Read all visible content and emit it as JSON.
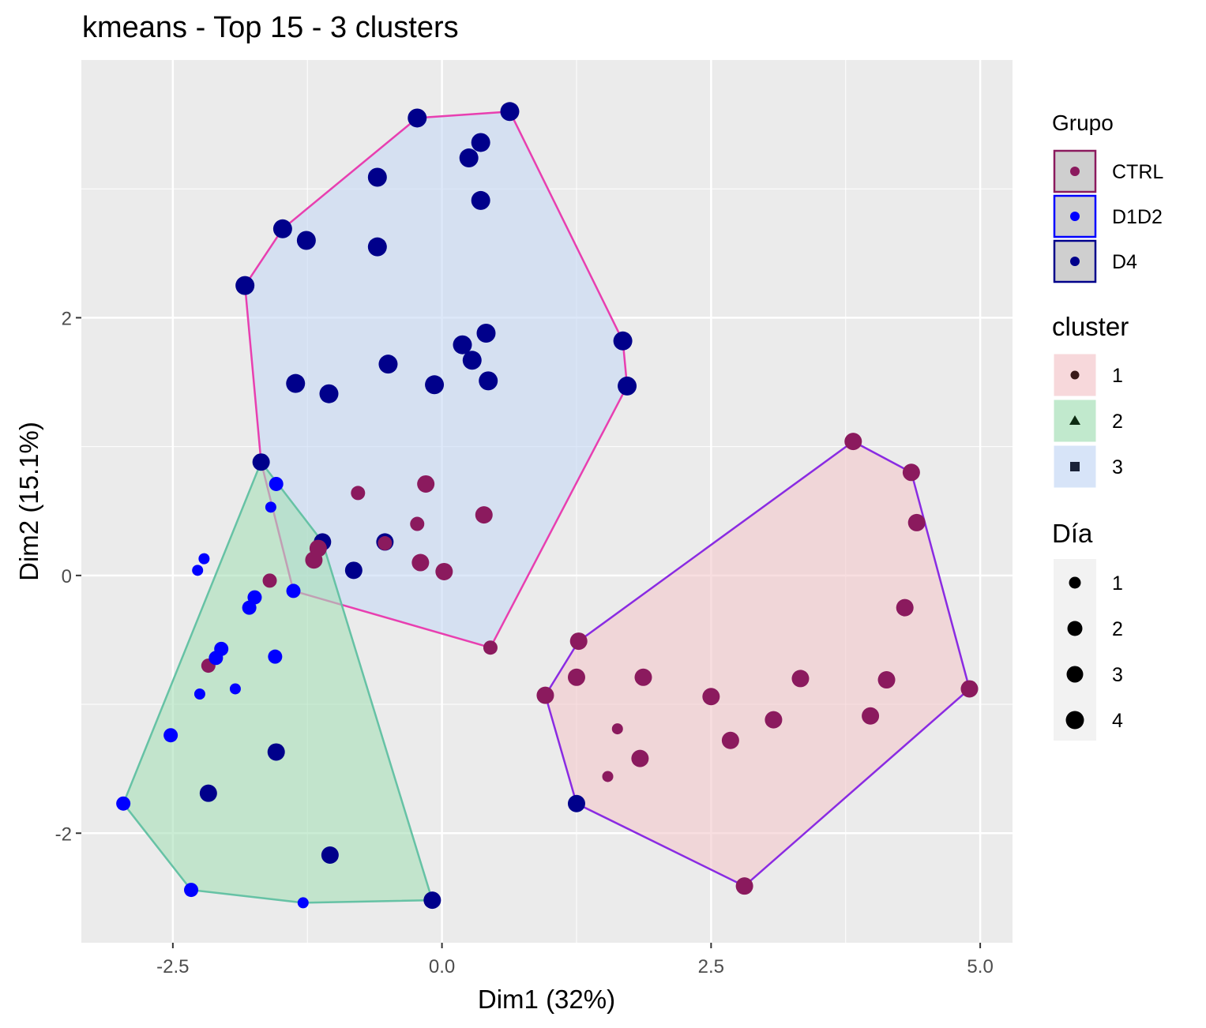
{
  "chart_data": {
    "type": "scatter",
    "title": "kmeans - Top 15 - 3 clusters",
    "xlabel": "Dim1 (32%)",
    "ylabel": "Dim2 (15.1%)",
    "xlim": [
      -3.35,
      5.3
    ],
    "ylim": [
      -2.85,
      4.0
    ],
    "x_ticks": [
      -2.5,
      0.0,
      2.5,
      5.0
    ],
    "x_tick_labels": [
      "-2.5",
      "0.0",
      "2.5",
      "5.0"
    ],
    "y_ticks": [
      -2,
      0,
      2
    ],
    "y_tick_labels": [
      "-2",
      "0",
      "2"
    ],
    "grid": true,
    "legend_position": "right",
    "groups": [
      {
        "name": "CTRL",
        "color": "#8B1A5E"
      },
      {
        "name": "D1D2",
        "color": "#0000FF"
      },
      {
        "name": "D4",
        "color": "#00008B"
      }
    ],
    "clusters": [
      {
        "name": "1",
        "fill": "#F4C8CC",
        "line": "#8A2BE2",
        "symbol": "circle"
      },
      {
        "name": "2",
        "fill": "#A6E0B8",
        "line": "#66C2A5",
        "symbol": "triangle"
      },
      {
        "name": "3",
        "fill": "#C6D8F5",
        "line": "#E83FB0",
        "symbol": "square"
      }
    ],
    "dias": [
      "1",
      "2",
      "3",
      "4"
    ],
    "legend_titles": {
      "grupo": "Grupo",
      "cluster": "cluster",
      "dia": "Día"
    },
    "hulls": [
      {
        "cluster": "3",
        "points": [
          [
            -1.83,
            2.25
          ],
          [
            -1.48,
            2.69
          ],
          [
            -0.23,
            3.55
          ],
          [
            0.63,
            3.6
          ],
          [
            1.68,
            1.82
          ],
          [
            1.72,
            1.47
          ],
          [
            0.45,
            -0.56
          ],
          [
            -1.38,
            -0.12
          ],
          [
            -1.68,
            0.88
          ]
        ]
      },
      {
        "cluster": "2",
        "points": [
          [
            -1.68,
            0.88
          ],
          [
            -1.11,
            0.26
          ],
          [
            -0.09,
            -2.52
          ],
          [
            -1.29,
            -2.54
          ],
          [
            -2.33,
            -2.44
          ],
          [
            -2.96,
            -1.77
          ]
        ]
      },
      {
        "cluster": "1",
        "points": [
          [
            3.82,
            1.04
          ],
          [
            4.36,
            0.8
          ],
          [
            4.9,
            -0.88
          ],
          [
            2.81,
            -2.41
          ],
          [
            1.25,
            -1.77
          ],
          [
            0.96,
            -0.93
          ],
          [
            1.27,
            -0.51
          ]
        ]
      }
    ],
    "points": [
      {
        "x": -0.23,
        "y": 3.55,
        "grupo": "D4",
        "dia": 4
      },
      {
        "x": 0.63,
        "y": 3.6,
        "grupo": "D4",
        "dia": 4
      },
      {
        "x": 0.36,
        "y": 3.36,
        "grupo": "D4",
        "dia": 4
      },
      {
        "x": 0.25,
        "y": 3.24,
        "grupo": "D4",
        "dia": 4
      },
      {
        "x": -0.6,
        "y": 3.09,
        "grupo": "D4",
        "dia": 4
      },
      {
        "x": 0.36,
        "y": 2.91,
        "grupo": "D4",
        "dia": 4
      },
      {
        "x": -1.48,
        "y": 2.69,
        "grupo": "D4",
        "dia": 4
      },
      {
        "x": -1.26,
        "y": 2.6,
        "grupo": "D4",
        "dia": 4
      },
      {
        "x": -0.6,
        "y": 2.55,
        "grupo": "D4",
        "dia": 4
      },
      {
        "x": -1.83,
        "y": 2.25,
        "grupo": "D4",
        "dia": 4
      },
      {
        "x": 0.41,
        "y": 1.88,
        "grupo": "D4",
        "dia": 4
      },
      {
        "x": 0.19,
        "y": 1.79,
        "grupo": "D4",
        "dia": 4
      },
      {
        "x": 1.68,
        "y": 1.82,
        "grupo": "D4",
        "dia": 4
      },
      {
        "x": 0.28,
        "y": 1.67,
        "grupo": "D4",
        "dia": 4
      },
      {
        "x": -0.5,
        "y": 1.64,
        "grupo": "D4",
        "dia": 4
      },
      {
        "x": 0.43,
        "y": 1.51,
        "grupo": "D4",
        "dia": 4
      },
      {
        "x": -1.36,
        "y": 1.49,
        "grupo": "D4",
        "dia": 4
      },
      {
        "x": -0.07,
        "y": 1.48,
        "grupo": "D4",
        "dia": 4
      },
      {
        "x": 1.72,
        "y": 1.47,
        "grupo": "D4",
        "dia": 4
      },
      {
        "x": -1.05,
        "y": 1.41,
        "grupo": "D4",
        "dia": 4
      },
      {
        "x": -1.68,
        "y": 0.88,
        "grupo": "D4",
        "dia": 3
      },
      {
        "x": -1.11,
        "y": 0.26,
        "grupo": "D4",
        "dia": 3
      },
      {
        "x": -0.53,
        "y": 0.26,
        "grupo": "D4",
        "dia": 3
      },
      {
        "x": -0.82,
        "y": 0.04,
        "grupo": "D4",
        "dia": 3
      },
      {
        "x": -0.15,
        "y": 0.71,
        "grupo": "CTRL",
        "dia": 3
      },
      {
        "x": -0.78,
        "y": 0.64,
        "grupo": "CTRL",
        "dia": 2
      },
      {
        "x": 0.39,
        "y": 0.47,
        "grupo": "CTRL",
        "dia": 3
      },
      {
        "x": -0.23,
        "y": 0.4,
        "grupo": "CTRL",
        "dia": 2
      },
      {
        "x": -0.53,
        "y": 0.25,
        "grupo": "CTRL",
        "dia": 2
      },
      {
        "x": -1.15,
        "y": 0.21,
        "grupo": "CTRL",
        "dia": 3
      },
      {
        "x": -1.19,
        "y": 0.12,
        "grupo": "CTRL",
        "dia": 3
      },
      {
        "x": -0.2,
        "y": 0.1,
        "grupo": "CTRL",
        "dia": 3
      },
      {
        "x": 0.02,
        "y": 0.03,
        "grupo": "CTRL",
        "dia": 3
      },
      {
        "x": 0.45,
        "y": -0.56,
        "grupo": "CTRL",
        "dia": 2
      },
      {
        "x": -1.6,
        "y": -0.04,
        "grupo": "CTRL",
        "dia": 2
      },
      {
        "x": -2.17,
        "y": -0.7,
        "grupo": "CTRL",
        "dia": 2
      },
      {
        "x": -1.54,
        "y": 0.71,
        "grupo": "D1D2",
        "dia": 2
      },
      {
        "x": -1.59,
        "y": 0.53,
        "grupo": "D1D2",
        "dia": 1
      },
      {
        "x": -2.21,
        "y": 0.13,
        "grupo": "D1D2",
        "dia": 1
      },
      {
        "x": -2.27,
        "y": 0.04,
        "grupo": "D1D2",
        "dia": 1
      },
      {
        "x": -1.38,
        "y": -0.12,
        "grupo": "D1D2",
        "dia": 2
      },
      {
        "x": -1.74,
        "y": -0.17,
        "grupo": "D1D2",
        "dia": 2
      },
      {
        "x": -1.79,
        "y": -0.25,
        "grupo": "D1D2",
        "dia": 2
      },
      {
        "x": -2.05,
        "y": -0.57,
        "grupo": "D1D2",
        "dia": 2
      },
      {
        "x": -2.1,
        "y": -0.64,
        "grupo": "D1D2",
        "dia": 2
      },
      {
        "x": -1.55,
        "y": -0.63,
        "grupo": "D1D2",
        "dia": 2
      },
      {
        "x": -1.92,
        "y": -0.88,
        "grupo": "D1D2",
        "dia": 1
      },
      {
        "x": -2.25,
        "y": -0.92,
        "grupo": "D1D2",
        "dia": 1
      },
      {
        "x": -2.52,
        "y": -1.24,
        "grupo": "D1D2",
        "dia": 2
      },
      {
        "x": -1.54,
        "y": -1.37,
        "grupo": "D4",
        "dia": 3
      },
      {
        "x": -2.17,
        "y": -1.69,
        "grupo": "D4",
        "dia": 3
      },
      {
        "x": -2.96,
        "y": -1.77,
        "grupo": "D1D2",
        "dia": 2
      },
      {
        "x": -1.04,
        "y": -2.17,
        "grupo": "D4",
        "dia": 3
      },
      {
        "x": -2.33,
        "y": -2.44,
        "grupo": "D1D2",
        "dia": 2
      },
      {
        "x": -1.29,
        "y": -2.54,
        "grupo": "D1D2",
        "dia": 1
      },
      {
        "x": -0.09,
        "y": -2.52,
        "grupo": "D4",
        "dia": 3
      },
      {
        "x": 3.82,
        "y": 1.04,
        "grupo": "CTRL",
        "dia": 3
      },
      {
        "x": 4.36,
        "y": 0.8,
        "grupo": "CTRL",
        "dia": 3
      },
      {
        "x": 4.41,
        "y": 0.41,
        "grupo": "CTRL",
        "dia": 3
      },
      {
        "x": 4.3,
        "y": -0.25,
        "grupo": "CTRL",
        "dia": 3
      },
      {
        "x": 1.27,
        "y": -0.51,
        "grupo": "CTRL",
        "dia": 3
      },
      {
        "x": 1.25,
        "y": -0.79,
        "grupo": "CTRL",
        "dia": 3
      },
      {
        "x": 1.87,
        "y": -0.79,
        "grupo": "CTRL",
        "dia": 3
      },
      {
        "x": 3.33,
        "y": -0.8,
        "grupo": "CTRL",
        "dia": 3
      },
      {
        "x": 4.13,
        "y": -0.81,
        "grupo": "CTRL",
        "dia": 3
      },
      {
        "x": 0.96,
        "y": -0.93,
        "grupo": "CTRL",
        "dia": 3
      },
      {
        "x": 2.5,
        "y": -0.94,
        "grupo": "CTRL",
        "dia": 3
      },
      {
        "x": 4.9,
        "y": -0.88,
        "grupo": "CTRL",
        "dia": 3
      },
      {
        "x": 3.98,
        "y": -1.09,
        "grupo": "CTRL",
        "dia": 3
      },
      {
        "x": 3.08,
        "y": -1.12,
        "grupo": "CTRL",
        "dia": 3
      },
      {
        "x": 1.63,
        "y": -1.19,
        "grupo": "CTRL",
        "dia": 1
      },
      {
        "x": 2.68,
        "y": -1.28,
        "grupo": "CTRL",
        "dia": 3
      },
      {
        "x": 1.84,
        "y": -1.42,
        "grupo": "CTRL",
        "dia": 3
      },
      {
        "x": 1.54,
        "y": -1.56,
        "grupo": "CTRL",
        "dia": 1
      },
      {
        "x": 1.25,
        "y": -1.77,
        "grupo": "D4",
        "dia": 3
      },
      {
        "x": 2.81,
        "y": -2.41,
        "grupo": "CTRL",
        "dia": 3
      }
    ]
  }
}
